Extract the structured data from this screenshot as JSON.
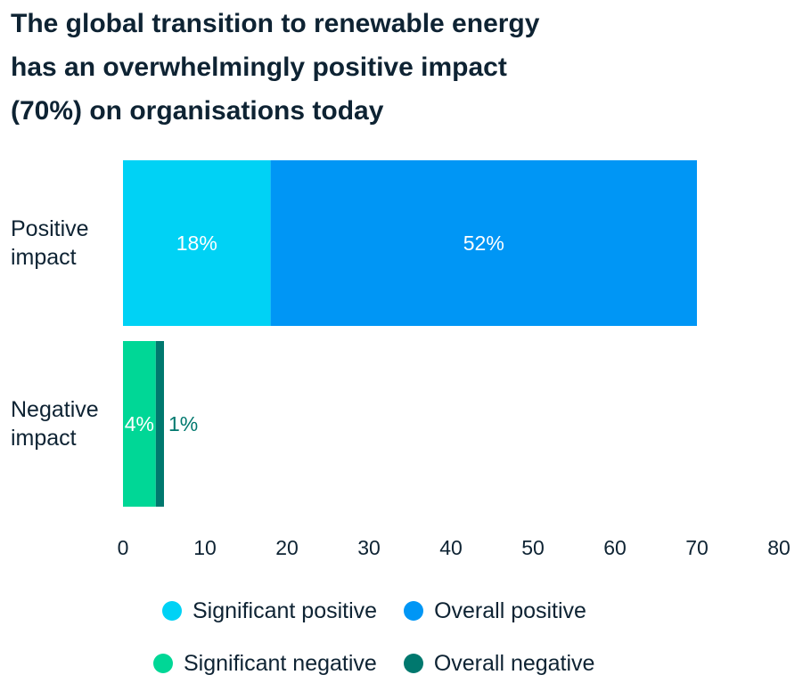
{
  "title_lines": [
    "The global transition to renewable energy",
    "has an overwhelmingly positive impact",
    "(70%) on organisations today"
  ],
  "colors": {
    "significant_positive": "#00d2f5",
    "overall_positive": "#0096f5",
    "significant_negative": "#00d796",
    "overall_negative": "#00786e",
    "text": "#0e2333"
  },
  "chart_data": {
    "type": "bar",
    "orientation": "horizontal",
    "stacked": true,
    "categories": [
      [
        "Positive",
        "impact"
      ],
      [
        "Negative",
        "impact"
      ]
    ],
    "series": [
      {
        "name": "Significant positive",
        "values": [
          18,
          0
        ],
        "labels": [
          "18%",
          ""
        ],
        "color": "#00d2f5",
        "label_color": "#ffffff",
        "label_pos": "inside"
      },
      {
        "name": "Overall positive",
        "values": [
          52,
          0
        ],
        "labels": [
          "52%",
          ""
        ],
        "color": "#0096f5",
        "label_color": "#ffffff",
        "label_pos": "inside"
      },
      {
        "name": "Significant negative",
        "values": [
          0,
          4
        ],
        "labels": [
          "",
          "4%"
        ],
        "color": "#00d796",
        "label_color": "#ffffff",
        "label_pos": "inside"
      },
      {
        "name": "Overall negative",
        "values": [
          0,
          1
        ],
        "labels": [
          "",
          "1%"
        ],
        "color": "#00786e",
        "label_color": "#00786e",
        "label_pos": "outside"
      }
    ],
    "xlim": [
      0,
      80
    ],
    "xticks": [
      "0",
      "10",
      "20",
      "30",
      "40",
      "50",
      "60",
      "70",
      "80"
    ],
    "grid": false,
    "legend_placement": "bottom"
  },
  "legend_rows": [
    [
      {
        "label": "Significant positive",
        "color": "#00d2f5"
      },
      {
        "label": "Overall positive",
        "color": "#0096f5"
      }
    ],
    [
      {
        "label": "Significant negative",
        "color": "#00d796"
      },
      {
        "label": "Overall negative",
        "color": "#00786e"
      }
    ]
  ]
}
